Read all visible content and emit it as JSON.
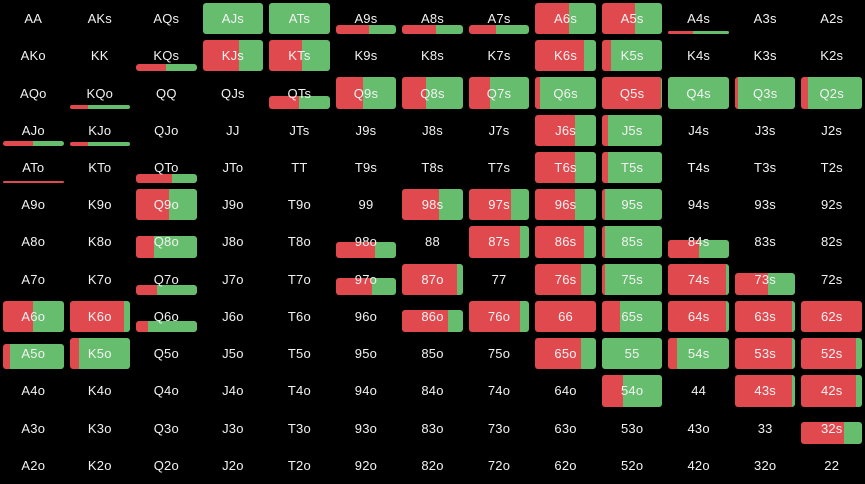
{
  "chart": {
    "legend_colors": {
      "red": "#e04a4f",
      "green": "#66bd6e"
    }
  },
  "rows": [
    [
      {
        "h": "AA"
      },
      {
        "h": "AKs"
      },
      {
        "h": "AQs"
      },
      {
        "h": "AJs",
        "f": 1.0,
        "r": 0.0
      },
      {
        "h": "ATs",
        "f": 1.0,
        "r": 0.0
      },
      {
        "h": "A9s",
        "f": 0.3,
        "r": 0.55
      },
      {
        "h": "A8s",
        "f": 0.3,
        "r": 0.55
      },
      {
        "h": "A7s",
        "f": 0.3,
        "r": 0.45
      },
      {
        "h": "A6s",
        "f": 1.0,
        "r": 0.55
      },
      {
        "h": "A5s",
        "f": 1.0,
        "r": 0.55
      },
      {
        "h": "A4s",
        "f": 0.1,
        "r": 0.4
      },
      {
        "h": "A3s"
      },
      {
        "h": "A2s"
      }
    ],
    [
      {
        "h": "AKo"
      },
      {
        "h": "KK"
      },
      {
        "h": "KQs",
        "f": 0.25,
        "r": 0.5
      },
      {
        "h": "KJs",
        "f": 1.0,
        "r": 0.6
      },
      {
        "h": "KTs",
        "f": 1.0,
        "r": 0.55
      },
      {
        "h": "K9s"
      },
      {
        "h": "K8s"
      },
      {
        "h": "K7s"
      },
      {
        "h": "K6s",
        "f": 1.0,
        "r": 0.8
      },
      {
        "h": "K5s",
        "f": 1.0,
        "r": 0.15
      },
      {
        "h": "K4s"
      },
      {
        "h": "K3s"
      },
      {
        "h": "K2s"
      }
    ],
    [
      {
        "h": "AQo"
      },
      {
        "h": "KQo",
        "f": 0.12,
        "r": 0.3
      },
      {
        "h": "QQ"
      },
      {
        "h": "QJs"
      },
      {
        "h": "QTs",
        "f": 0.4,
        "r": 0.5
      },
      {
        "h": "Q9s",
        "f": 1.0,
        "r": 0.45
      },
      {
        "h": "Q8s",
        "f": 1.0,
        "r": 0.4
      },
      {
        "h": "Q7s",
        "f": 1.0,
        "r": 0.35
      },
      {
        "h": "Q6s",
        "f": 1.0,
        "r": 0.08
      },
      {
        "h": "Q5s",
        "f": 1.0,
        "r": 0.97
      },
      {
        "h": "Q4s",
        "f": 1.0,
        "r": 0.0
      },
      {
        "h": "Q3s",
        "f": 1.0,
        "r": 0.05
      },
      {
        "h": "Q2s",
        "f": 1.0,
        "r": 0.1
      }
    ],
    [
      {
        "h": "AJo",
        "f": 0.15,
        "r": 0.5
      },
      {
        "h": "KJo",
        "f": 0.12,
        "r": 0.3
      },
      {
        "h": "QJo"
      },
      {
        "h": "JJ"
      },
      {
        "h": "JTs"
      },
      {
        "h": "J9s"
      },
      {
        "h": "J8s"
      },
      {
        "h": "J7s"
      },
      {
        "h": "J6s",
        "f": 1.0,
        "r": 0.65
      },
      {
        "h": "J5s",
        "f": 1.0,
        "r": 0.1
      },
      {
        "h": "J4s"
      },
      {
        "h": "J3s"
      },
      {
        "h": "J2s"
      }
    ],
    [
      {
        "h": "ATo",
        "f": 0.05,
        "r": 1.0
      },
      {
        "h": "KTo"
      },
      {
        "h": "QTo",
        "f": 0.3,
        "r": 0.6
      },
      {
        "h": "JTo"
      },
      {
        "h": "TT"
      },
      {
        "h": "T9s"
      },
      {
        "h": "T8s"
      },
      {
        "h": "T7s"
      },
      {
        "h": "T6s",
        "f": 1.0,
        "r": 0.65
      },
      {
        "h": "T5s",
        "f": 1.0,
        "r": 0.1
      },
      {
        "h": "T4s"
      },
      {
        "h": "T3s"
      },
      {
        "h": "T2s"
      }
    ],
    [
      {
        "h": "A9o"
      },
      {
        "h": "K9o"
      },
      {
        "h": "Q9o",
        "f": 1.0,
        "r": 0.55
      },
      {
        "h": "J9o"
      },
      {
        "h": "T9o"
      },
      {
        "h": "99"
      },
      {
        "h": "98s",
        "f": 1.0,
        "r": 0.6
      },
      {
        "h": "97s",
        "f": 1.0,
        "r": 0.7
      },
      {
        "h": "96s",
        "f": 1.0,
        "r": 0.65
      },
      {
        "h": "95s",
        "f": 1.0,
        "r": 0.05
      },
      {
        "h": "94s"
      },
      {
        "h": "93s"
      },
      {
        "h": "92s"
      }
    ],
    [
      {
        "h": "A8o"
      },
      {
        "h": "K8o"
      },
      {
        "h": "Q8o",
        "f": 0.7,
        "r": 0.3
      },
      {
        "h": "J8o"
      },
      {
        "h": "T8o"
      },
      {
        "h": "98o",
        "f": 0.5,
        "r": 0.65
      },
      {
        "h": "88"
      },
      {
        "h": "87s",
        "f": 1.0,
        "r": 0.85
      },
      {
        "h": "86s",
        "f": 1.0,
        "r": 0.8
      },
      {
        "h": "85s",
        "f": 1.0,
        "r": 0.05
      },
      {
        "h": "84s",
        "f": 0.55,
        "r": 0.5
      },
      {
        "h": "83s"
      },
      {
        "h": "82s"
      }
    ],
    [
      {
        "h": "A7o"
      },
      {
        "h": "K7o"
      },
      {
        "h": "Q7o",
        "f": 0.3,
        "r": 0.35
      },
      {
        "h": "J7o"
      },
      {
        "h": "T7o"
      },
      {
        "h": "97o",
        "f": 0.55,
        "r": 0.6
      },
      {
        "h": "87o",
        "f": 1.0,
        "r": 0.9
      },
      {
        "h": "77"
      },
      {
        "h": "76s",
        "f": 1.0,
        "r": 0.75
      },
      {
        "h": "75s",
        "f": 1.0,
        "r": 0.05
      },
      {
        "h": "74s",
        "f": 1.0,
        "r": 0.95
      },
      {
        "h": "73s",
        "f": 0.7,
        "r": 0.55
      },
      {
        "h": "72s"
      }
    ],
    [
      {
        "h": "A6o",
        "f": 1.0,
        "r": 0.5
      },
      {
        "h": "K6o",
        "f": 1.0,
        "r": 0.9
      },
      {
        "h": "Q6o",
        "f": 0.35,
        "r": 0.2
      },
      {
        "h": "J6o"
      },
      {
        "h": "T6o"
      },
      {
        "h": "96o"
      },
      {
        "h": "86o",
        "f": 0.7,
        "r": 0.75
      },
      {
        "h": "76o",
        "f": 1.0,
        "r": 0.85
      },
      {
        "h": "66",
        "f": 1.0,
        "r": 1.0
      },
      {
        "h": "65s",
        "f": 1.0,
        "r": 0.3
      },
      {
        "h": "64s",
        "f": 1.0,
        "r": 0.95
      },
      {
        "h": "63s",
        "f": 1.0,
        "r": 0.95
      },
      {
        "h": "62s",
        "f": 1.0,
        "r": 1.0
      }
    ],
    [
      {
        "h": "A5o",
        "f": 0.8,
        "r": 0.12
      },
      {
        "h": "K5o",
        "f": 1.0,
        "r": 0.15
      },
      {
        "h": "Q5o"
      },
      {
        "h": "J5o"
      },
      {
        "h": "T5o"
      },
      {
        "h": "95o"
      },
      {
        "h": "85o"
      },
      {
        "h": "75o"
      },
      {
        "h": "65o",
        "f": 1.0,
        "r": 0.75
      },
      {
        "h": "55",
        "f": 1.0,
        "r": 0.0
      },
      {
        "h": "54s",
        "f": 1.0,
        "r": 0.15
      },
      {
        "h": "53s",
        "f": 1.0,
        "r": 0.95
      },
      {
        "h": "52s",
        "f": 1.0,
        "r": 0.9
      }
    ],
    [
      {
        "h": "A4o"
      },
      {
        "h": "K4o"
      },
      {
        "h": "Q4o"
      },
      {
        "h": "J4o"
      },
      {
        "h": "T4o"
      },
      {
        "h": "94o"
      },
      {
        "h": "84o"
      },
      {
        "h": "74o"
      },
      {
        "h": "64o"
      },
      {
        "h": "54o",
        "f": 1.0,
        "r": 0.35
      },
      {
        "h": "44"
      },
      {
        "h": "43s",
        "f": 1.0,
        "r": 0.95
      },
      {
        "h": "42s",
        "f": 1.0,
        "r": 0.9
      }
    ],
    [
      {
        "h": "A3o"
      },
      {
        "h": "K3o"
      },
      {
        "h": "Q3o"
      },
      {
        "h": "J3o"
      },
      {
        "h": "T3o"
      },
      {
        "h": "93o"
      },
      {
        "h": "83o"
      },
      {
        "h": "73o"
      },
      {
        "h": "63o"
      },
      {
        "h": "53o"
      },
      {
        "h": "43o"
      },
      {
        "h": "33"
      },
      {
        "h": "32s",
        "f": 0.7,
        "r": 0.7
      }
    ],
    [
      {
        "h": "A2o"
      },
      {
        "h": "K2o"
      },
      {
        "h": "Q2o"
      },
      {
        "h": "J2o"
      },
      {
        "h": "T2o"
      },
      {
        "h": "92o"
      },
      {
        "h": "82o"
      },
      {
        "h": "72o"
      },
      {
        "h": "62o"
      },
      {
        "h": "52o"
      },
      {
        "h": "42o"
      },
      {
        "h": "32o"
      },
      {
        "h": "22"
      }
    ]
  ]
}
